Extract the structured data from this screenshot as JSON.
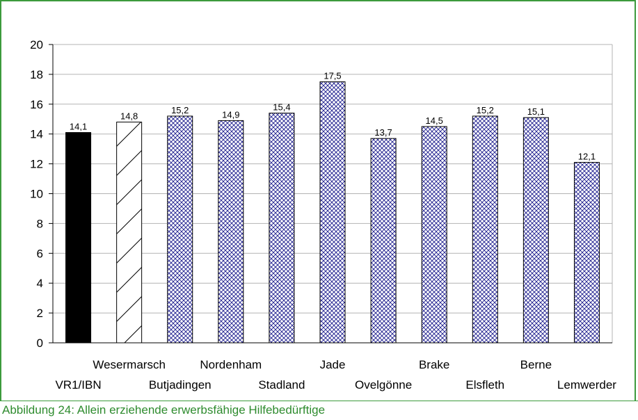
{
  "caption": "Abbildung 24: Allein erziehende erwerbsfähige Hilfebedürftige",
  "chart_data": {
    "type": "bar",
    "title": "",
    "xlabel": "",
    "ylabel": "",
    "ylim": [
      0,
      20
    ],
    "yticks": [
      0,
      2,
      4,
      6,
      8,
      10,
      12,
      14,
      16,
      18,
      20
    ],
    "grid": true,
    "categories": [
      "VR1/IBN",
      "Wesermarsch",
      "Butjadingen",
      "Nordenham",
      "Stadland",
      "Jade",
      "Ovelgönne",
      "Brake",
      "Elsfleth",
      "Berne",
      "Lemwerder"
    ],
    "values": [
      14.1,
      14.8,
      15.2,
      14.9,
      15.4,
      17.5,
      13.7,
      14.5,
      15.2,
      15.1,
      12.1
    ],
    "value_labels": [
      "14,1",
      "14,8",
      "15,2",
      "14,9",
      "15,4",
      "17,5",
      "13,7",
      "14,5",
      "15,2",
      "15,1",
      "12,1"
    ],
    "fills": [
      "solid-black",
      "diagonal-hatch",
      "crosshatch-navy",
      "crosshatch-navy",
      "crosshatch-navy",
      "crosshatch-navy",
      "crosshatch-navy",
      "crosshatch-navy",
      "crosshatch-navy",
      "crosshatch-navy",
      "crosshatch-navy"
    ],
    "colors": {
      "bar_outline": "#000000",
      "crosshatch": "#1a1a8c",
      "grid": "#b3b3b3",
      "frame": "#3c9a3c"
    }
  }
}
